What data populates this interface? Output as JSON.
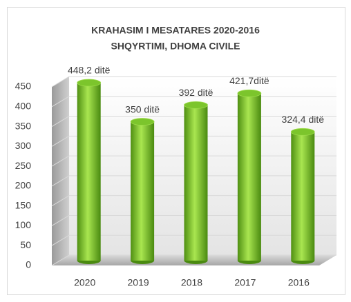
{
  "chart_data": {
    "type": "bar3d",
    "title": "KRAHASIM I MESATARES 2020-2016",
    "subtitle": "SHQYRTIMI,  DHOMA CIVILE",
    "categories": [
      "2020",
      "2019",
      "2018",
      "2017",
      "2016"
    ],
    "values": [
      448.2,
      350,
      392,
      421.7,
      324.4
    ],
    "value_labels": [
      "448,2 ditë",
      "350 ditë",
      "392 ditë",
      "421,7ditë",
      "324,4 ditë"
    ],
    "color": "#7cc52c",
    "ylim": [
      0,
      450
    ],
    "yticks": [
      0,
      50,
      100,
      150,
      200,
      250,
      300,
      350,
      400,
      450
    ],
    "grid": true
  }
}
